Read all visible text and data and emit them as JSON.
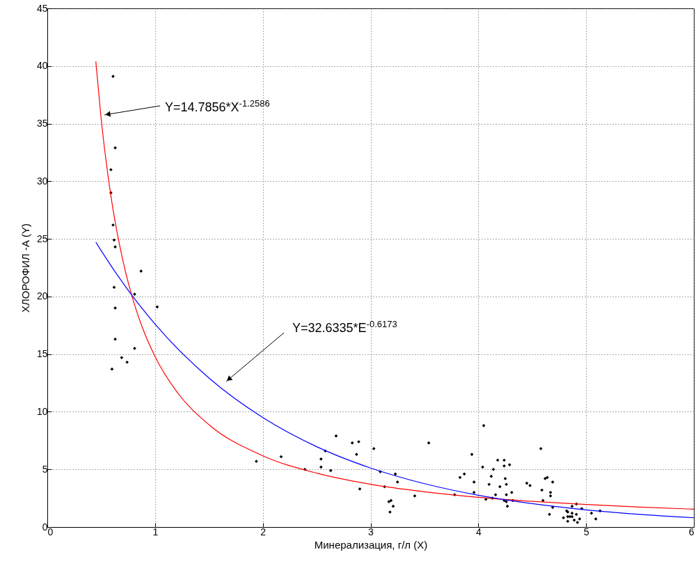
{
  "chart_data": {
    "type": "scatter",
    "xlabel": "Минерализация, г/л (X)",
    "ylabel": "ХЛОРОФИЛ -А (Y)",
    "xlim": [
      0,
      6
    ],
    "xticks": [
      0,
      1,
      2,
      3,
      4,
      5,
      6
    ],
    "ylim": [
      0,
      45
    ],
    "yticks": [
      0,
      5,
      10,
      15,
      20,
      25,
      30,
      35,
      40,
      45
    ],
    "grid": true,
    "series": [
      {
        "color": "#000000",
        "marker": "diamond",
        "x": [
          0.61,
          0.63,
          0.59,
          0.59,
          0.61,
          0.62,
          0.63,
          0.87,
          0.62,
          0.81,
          0.63,
          1.02,
          0.63,
          0.81,
          0.69,
          0.74,
          0.6,
          1.94,
          2.17,
          2.39,
          2.54,
          2.54,
          2.58,
          2.63,
          2.68,
          2.83,
          2.89,
          2.87,
          2.9,
          3.03,
          3.09,
          3.23,
          3.25,
          3.13,
          3.17,
          3.19,
          3.21,
          3.18,
          3.41,
          3.54,
          3.94,
          4.05,
          3.83,
          3.87,
          3.96,
          3.78,
          3.96,
          4.04,
          4.07,
          4.1,
          4.12,
          4.14,
          4.18,
          4.24,
          4.24,
          4.29,
          4.2,
          4.25,
          4.26,
          4.26,
          4.31,
          4.16,
          4.13,
          4.24,
          4.26,
          4.27,
          4.32,
          4.45,
          4.48,
          4.58,
          4.62,
          4.64,
          4.69,
          4.59,
          4.67,
          4.67,
          4.6,
          4.69,
          4.66,
          4.79,
          4.82,
          4.83,
          4.83,
          4.85,
          4.83,
          4.87,
          4.87,
          4.91,
          4.91,
          4.87,
          4.89,
          4.92,
          4.94,
          4.96,
          5.05,
          5.09,
          5.13
        ],
        "values": [
          39.1,
          32.9,
          31.0,
          29.0,
          26.2,
          24.9,
          24.3,
          22.2,
          20.8,
          20.2,
          19.0,
          19.1,
          16.3,
          15.5,
          14.7,
          14.3,
          13.7,
          5.7,
          6.1,
          5.0,
          5.9,
          5.2,
          6.6,
          4.9,
          7.9,
          7.3,
          7.4,
          6.3,
          3.3,
          6.8,
          4.8,
          4.6,
          3.9,
          3.5,
          2.2,
          2.3,
          1.8,
          1.3,
          2.7,
          7.3,
          6.3,
          8.8,
          4.3,
          4.6,
          3.9,
          2.8,
          3.0,
          5.2,
          2.4,
          3.7,
          4.4,
          5.0,
          5.8,
          5.8,
          5.3,
          5.4,
          3.5,
          4.2,
          3.7,
          2.8,
          3.0,
          2.8,
          2.5,
          2.3,
          2.2,
          1.8,
          2.3,
          3.8,
          3.6,
          6.8,
          4.2,
          4.3,
          3.9,
          3.2,
          3.0,
          2.7,
          2.3,
          1.7,
          1.1,
          0.8,
          1.4,
          1.3,
          0.9,
          0.9,
          0.5,
          1.2,
          0.9,
          1.1,
          2.0,
          1.8,
          0.6,
          0.4,
          0.7,
          1.6,
          1.2,
          0.7,
          1.4
        ]
      },
      {
        "type": "line",
        "color": "#ff0000",
        "x": [
          0.45,
          0.5,
          0.6,
          0.7,
          0.8,
          0.9,
          1,
          1.2,
          1.5,
          2,
          2.5,
          3,
          3.5,
          4,
          4.5,
          5,
          5.5,
          6
        ],
        "values": [
          40.4,
          35.38,
          28.12,
          23.17,
          19.58,
          16.88,
          14.79,
          11.76,
          8.88,
          6.18,
          4.67,
          3.71,
          3.06,
          2.58,
          2.23,
          1.95,
          1.73,
          1.55
        ]
      },
      {
        "type": "line",
        "color": "#0000ff",
        "x": [
          0.45,
          0.5,
          0.75,
          1,
          1.5,
          2,
          2.5,
          3,
          3.5,
          4,
          4.5,
          5,
          5.5,
          6
        ],
        "values": [
          24.72,
          23.97,
          20.54,
          17.6,
          12.93,
          9.5,
          6.97,
          5.12,
          3.76,
          2.76,
          2.03,
          1.49,
          1.09,
          0.8
        ]
      }
    ],
    "annotations": [
      "Y=14.7856*X$^{-1.2586}$",
      "Y=32.6335*E$^{-0.6173}$"
    ]
  }
}
